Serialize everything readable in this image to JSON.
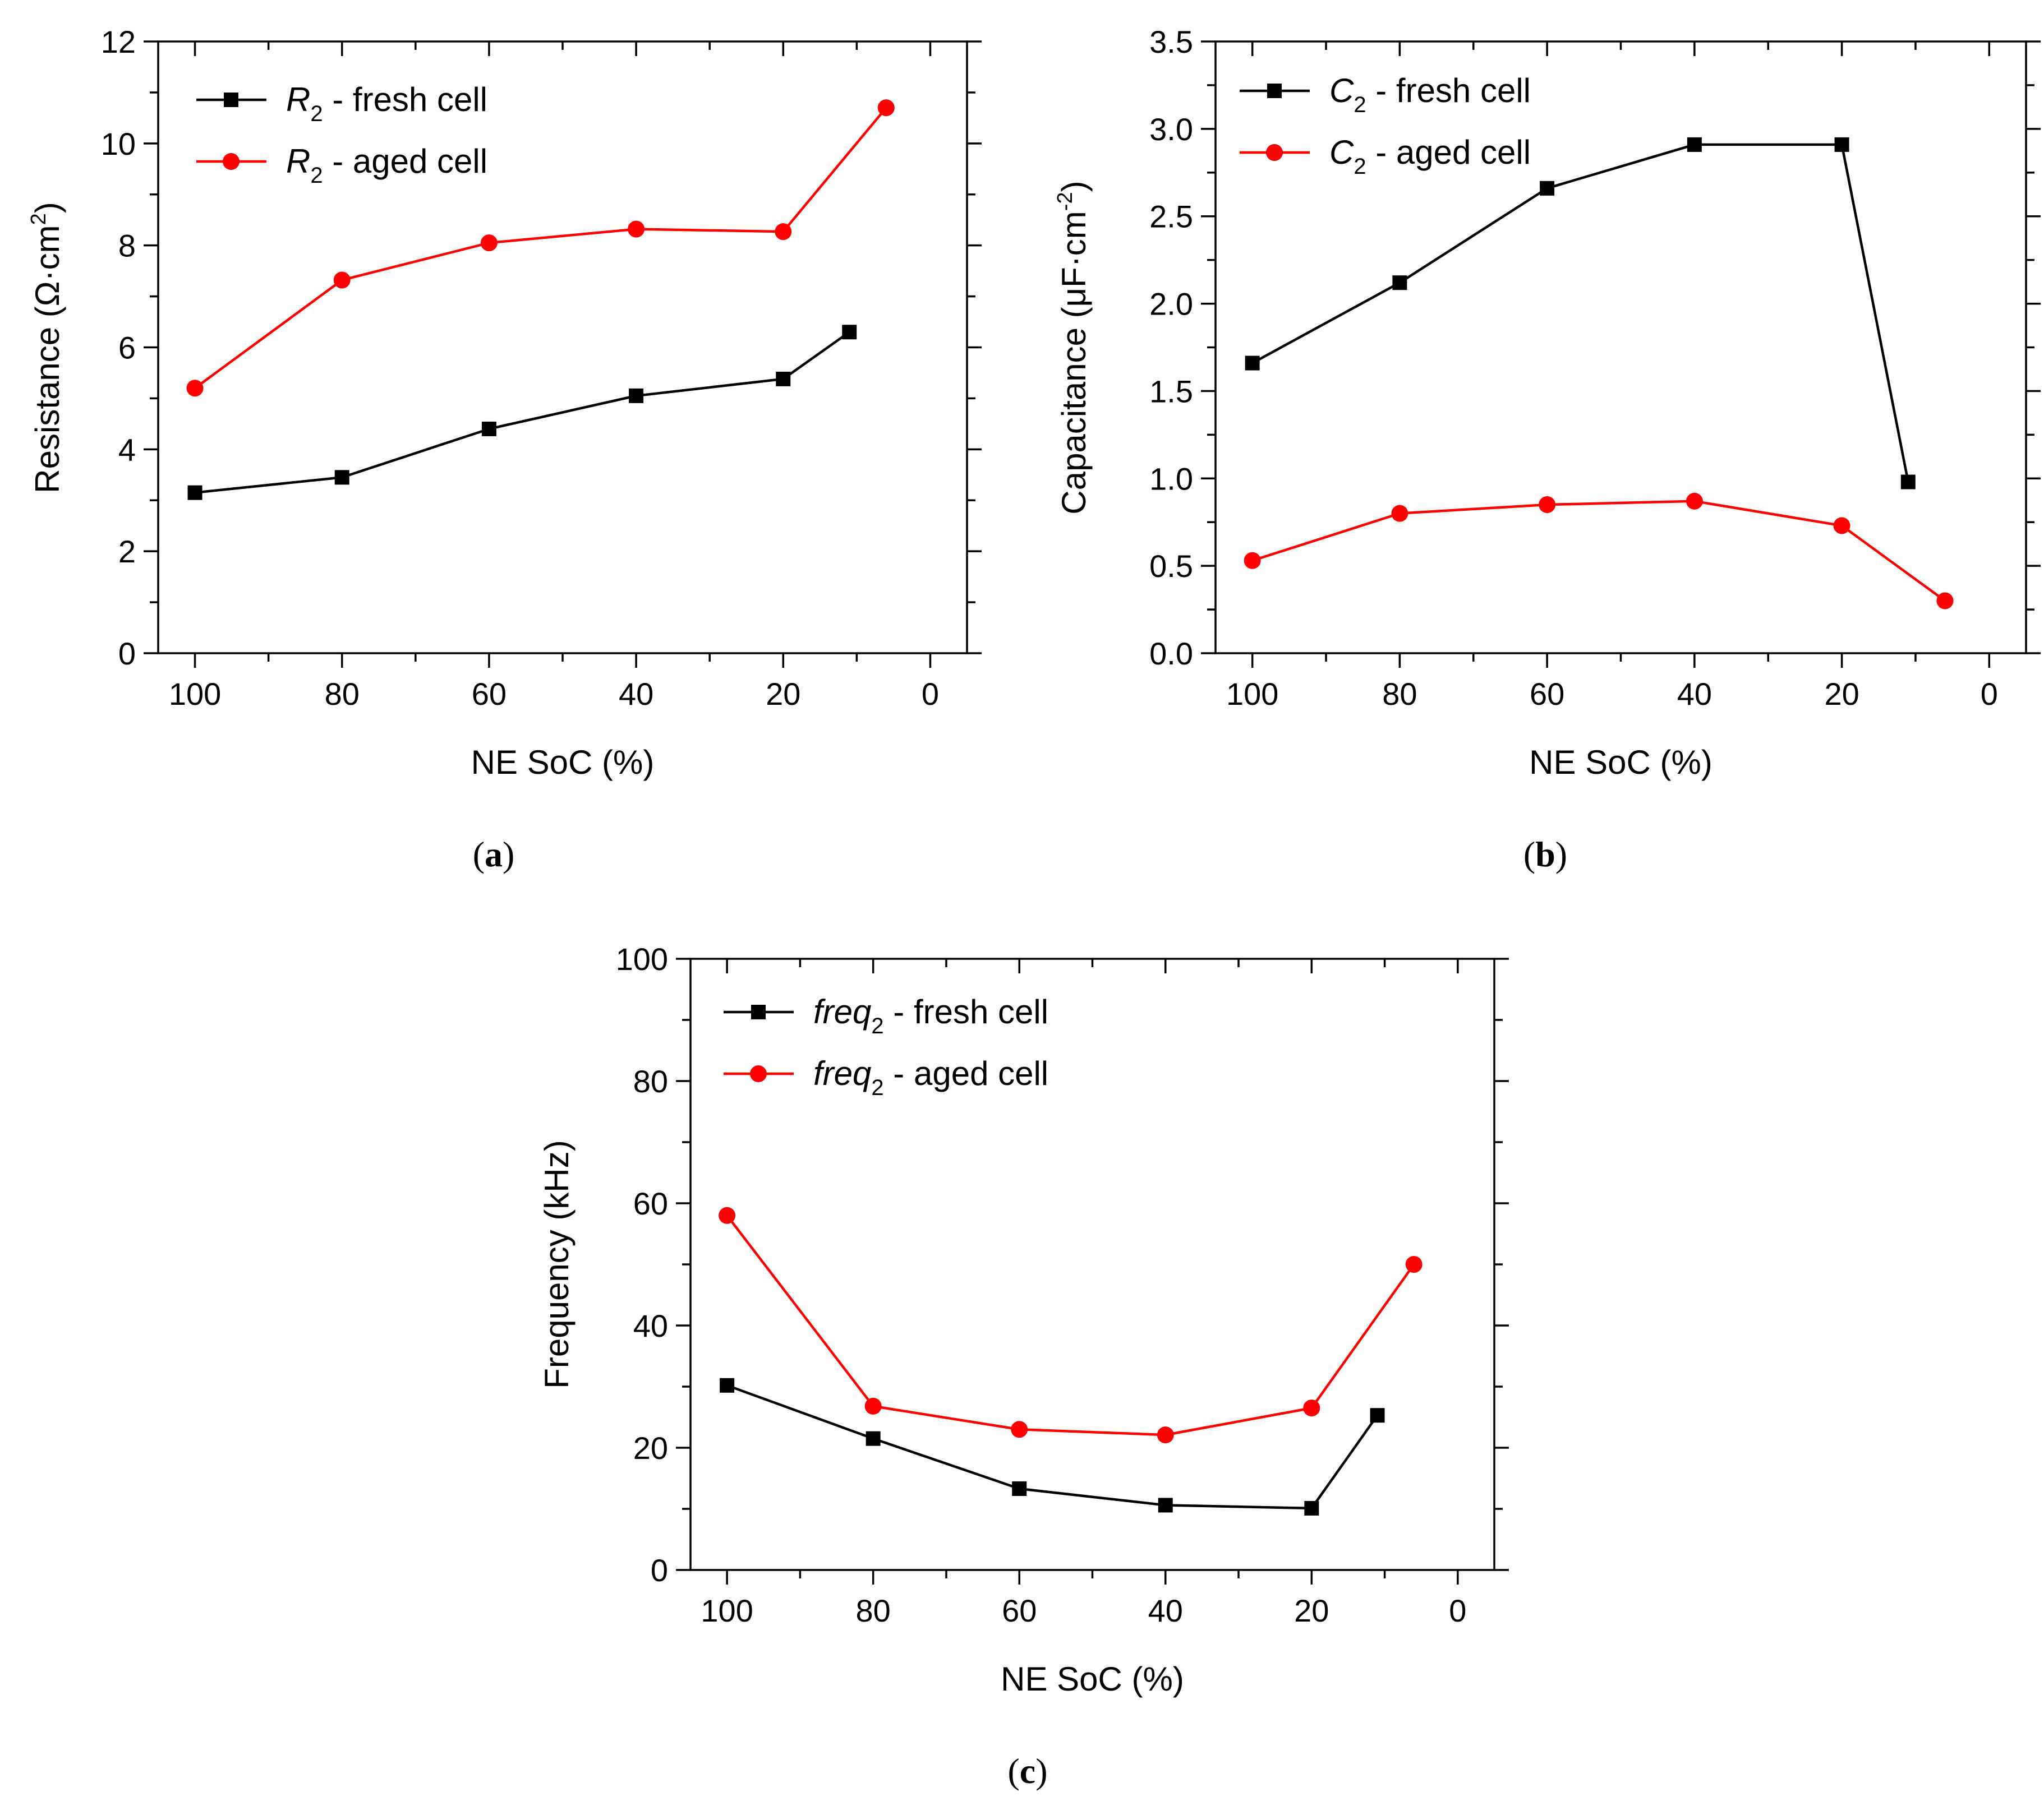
{
  "chart_data": [
    {
      "type": "line",
      "id": "a",
      "panel_label": "a",
      "title": "",
      "xlabel": "NE SoC (%)",
      "ylabel_parts": [
        "Resistance (Ω·cm",
        "2",
        ")"
      ],
      "xlim": [
        105,
        -5
      ],
      "ylim": [
        0,
        12
      ],
      "xticks": [
        100,
        80,
        60,
        40,
        20,
        0
      ],
      "xtick_labels": [
        "100",
        "80",
        "60",
        "40",
        "20",
        "0"
      ],
      "yticks": [
        0,
        2,
        4,
        6,
        8,
        10,
        12
      ],
      "ytick_labels": [
        "0",
        "2",
        "4",
        "6",
        "8",
        "10",
        "12"
      ],
      "legend_position": "top-left",
      "series": [
        {
          "name": "R2 - fresh cell",
          "legend_symbol": "R",
          "legend_sub": "2",
          "legend_text": " - fresh cell",
          "color": "#000000",
          "marker": "square",
          "x": [
            100,
            80,
            60,
            40,
            20,
            11
          ],
          "values": [
            3.15,
            3.45,
            4.4,
            5.05,
            5.38,
            6.3
          ]
        },
        {
          "name": "R2 - aged cell",
          "legend_symbol": "R",
          "legend_sub": "2",
          "legend_text": " - aged cell",
          "color": "#ff0000",
          "marker": "circle",
          "x": [
            100,
            80,
            60,
            40,
            20,
            6
          ],
          "values": [
            5.2,
            7.32,
            8.05,
            8.32,
            8.27,
            10.7
          ]
        }
      ]
    },
    {
      "type": "line",
      "id": "b",
      "panel_label": "b",
      "title": "",
      "xlabel": "NE SoC (%)",
      "ylabel_parts": [
        "Capacitance (μF·cm",
        "-2",
        ")"
      ],
      "xlim": [
        105,
        -5
      ],
      "ylim": [
        0,
        3.5
      ],
      "xticks": [
        100,
        80,
        60,
        40,
        20,
        0
      ],
      "xtick_labels": [
        "100",
        "80",
        "60",
        "40",
        "20",
        "0"
      ],
      "yticks": [
        0,
        0.5,
        1,
        1.5,
        2,
        2.5,
        3,
        3.5
      ],
      "ytick_labels": [
        "0.0",
        "0.5",
        "1.0",
        "1.5",
        "2.0",
        "2.5",
        "3.0",
        "3.5"
      ],
      "legend_position": "top-left",
      "series": [
        {
          "name": "C2 - fresh cell",
          "legend_symbol": "C",
          "legend_sub": "2",
          "legend_text": " - fresh cell",
          "color": "#000000",
          "marker": "square",
          "x": [
            100,
            80,
            60,
            40,
            20,
            11
          ],
          "values": [
            1.66,
            2.12,
            2.66,
            2.91,
            2.91,
            0.98
          ]
        },
        {
          "name": "C2 - aged cell",
          "legend_symbol": "C",
          "legend_sub": "2",
          "legend_text": " - aged cell",
          "color": "#ff0000",
          "marker": "circle",
          "x": [
            100,
            80,
            60,
            40,
            20,
            6
          ],
          "values": [
            0.53,
            0.8,
            0.85,
            0.87,
            0.73,
            0.3
          ]
        }
      ]
    },
    {
      "type": "line",
      "id": "c",
      "panel_label": "c",
      "title": "",
      "xlabel": "NE SoC (%)",
      "ylabel_parts": [
        "Frequency (kHz)",
        "",
        ""
      ],
      "xlim": [
        105,
        -5
      ],
      "ylim": [
        0,
        100
      ],
      "xticks": [
        100,
        80,
        60,
        40,
        20,
        0
      ],
      "xtick_labels": [
        "100",
        "80",
        "60",
        "40",
        "20",
        "0"
      ],
      "yticks": [
        0,
        20,
        40,
        60,
        80,
        100
      ],
      "ytick_labels": [
        "0",
        "20",
        "40",
        "60",
        "80",
        "100"
      ],
      "legend_position": "top-left",
      "series": [
        {
          "name": "freq2 - fresh cell",
          "legend_symbol": "freq",
          "legend_sub": "2",
          "legend_text": " - fresh cell",
          "color": "#000000",
          "marker": "square",
          "x": [
            100,
            80,
            60,
            40,
            20,
            11
          ],
          "values": [
            30.2,
            21.5,
            13.3,
            10.6,
            10.1,
            25.3
          ]
        },
        {
          "name": "freq2 - aged cell",
          "legend_symbol": "freq",
          "legend_sub": "2",
          "legend_text": " - aged cell",
          "color": "#ff0000",
          "marker": "circle",
          "x": [
            100,
            80,
            60,
            40,
            20,
            6
          ],
          "values": [
            58,
            26.8,
            23,
            22.1,
            26.5,
            50
          ]
        }
      ]
    }
  ]
}
